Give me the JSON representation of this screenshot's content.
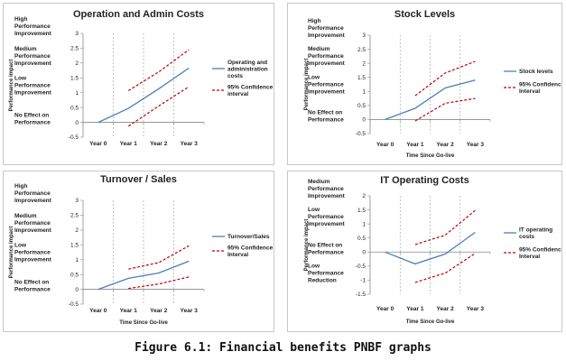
{
  "caption": "Figure 6.1: Financial benefits PNBF graphs",
  "chart_data": [
    {
      "type": "line",
      "title": "Operation and Admin Costs",
      "xlabel": "",
      "ylabel": "Performance impact",
      "categories": [
        "Year 0",
        "Year 1",
        "Year 2",
        "Year 3"
      ],
      "yticks": [
        "-0.5",
        "0",
        "0.5",
        "1",
        "1.5",
        "2",
        "2.5",
        "3"
      ],
      "ylim": [
        -0.5,
        3
      ],
      "y_categories": [
        {
          "label": [
            "High",
            "Performance",
            "Improvement"
          ],
          "y": 3
        },
        {
          "label": [
            "Medium",
            "Performance",
            "Improvement"
          ],
          "y": 2
        },
        {
          "label": [
            "Low",
            "Performance",
            "Improvement"
          ],
          "y": 1
        },
        {
          "label": [
            "No Effect on",
            "Performance"
          ],
          "y": 0
        }
      ],
      "series": [
        {
          "name": "Operating and administration costs",
          "legend_lines": [
            "Operating and",
            "administration",
            "costs"
          ],
          "style": "solid",
          "color": "#4a7ebb",
          "values": [
            0,
            0.47,
            1.13,
            1.83
          ]
        },
        {
          "name": "95% Confidence Interval",
          "legend_lines": [
            "95% Confidence",
            "interval"
          ],
          "style": "dashed",
          "color": "#c00000",
          "values": [
            null,
            1.07,
            1.7,
            2.45
          ]
        },
        {
          "name": "95% Confidence Interval (lower)",
          "legend": false,
          "style": "dashed",
          "color": "#c00000",
          "values": [
            null,
            -0.13,
            0.55,
            1.2
          ]
        }
      ]
    },
    {
      "type": "line",
      "title": "Stock Levels",
      "xlabel": "Time Since Go-live",
      "ylabel": "Performance impact",
      "categories": [
        "Year 0",
        "Year 1",
        "Year 2",
        "Year 3"
      ],
      "yticks": [
        "-0.5",
        "0",
        "0.5",
        "1",
        "1.5",
        "2",
        "2.5",
        "3"
      ],
      "ylim": [
        -0.5,
        3
      ],
      "y_categories": [
        {
          "label": [
            "High",
            "Performance",
            "Improvement"
          ],
          "y": 3
        },
        {
          "label": [
            "Medium",
            "Performance",
            "Improvement"
          ],
          "y": 2
        },
        {
          "label": [
            "Low",
            "Performance",
            "Improvement"
          ],
          "y": 1
        },
        {
          "label": [
            "No Effect on",
            "Performance"
          ],
          "y": 0
        }
      ],
      "series": [
        {
          "name": "Stock levels",
          "legend_lines": [
            "Stock levels"
          ],
          "style": "solid",
          "color": "#4a7ebb",
          "values": [
            0,
            0.4,
            1.12,
            1.4
          ]
        },
        {
          "name": "95% Confidence Interval",
          "legend_lines": [
            "95% Confidence",
            "Interval"
          ],
          "style": "dashed",
          "color": "#c00000",
          "values": [
            null,
            0.85,
            1.65,
            2.07
          ]
        },
        {
          "name": "95% Confidence Interval (lower)",
          "legend": false,
          "style": "dashed",
          "color": "#c00000",
          "values": [
            null,
            -0.05,
            0.58,
            0.75
          ]
        }
      ]
    },
    {
      "type": "line",
      "title": "Turnover / Sales",
      "xlabel": "Time Since Go-live",
      "ylabel": "Performance impact",
      "categories": [
        "Year 0",
        "Year 1",
        "Year 2",
        "Year 3"
      ],
      "yticks": [
        "-0.5",
        "0",
        "0.5",
        "1",
        "1.5",
        "2",
        "2.5",
        "3"
      ],
      "ylim": [
        -0.5,
        3
      ],
      "y_categories": [
        {
          "label": [
            "High",
            "Performance",
            "Improvement"
          ],
          "y": 3
        },
        {
          "label": [
            "Medium",
            "Performance",
            "Improvement"
          ],
          "y": 2
        },
        {
          "label": [
            "Low",
            "Performance",
            "Improvement"
          ],
          "y": 1
        },
        {
          "label": [
            "No Effect on",
            "Performance"
          ],
          "y": 0
        }
      ],
      "series": [
        {
          "name": "Turnover/Sales",
          "legend_lines": [
            "Turnover/Sales"
          ],
          "style": "solid",
          "color": "#4a7ebb",
          "values": [
            0,
            0.37,
            0.55,
            0.95
          ]
        },
        {
          "name": "95% Confidence Interval",
          "legend_lines": [
            "95% Confidence",
            "Interval"
          ],
          "style": "dashed",
          "color": "#c00000",
          "values": [
            null,
            0.68,
            0.9,
            1.47
          ]
        },
        {
          "name": "95% Confidence Interval (lower)",
          "legend": false,
          "style": "dashed",
          "color": "#c00000",
          "values": [
            null,
            0.03,
            0.18,
            0.42
          ]
        }
      ]
    },
    {
      "type": "line",
      "title": "IT Operating Costs",
      "xlabel": "Time Since Go-live",
      "ylabel": "Performance impact",
      "categories": [
        "Year 0",
        "Year 1",
        "Year 2",
        "Year 3"
      ],
      "yticks": [
        "-1.5",
        "-1",
        "-0.5",
        "0",
        "0.5",
        "1",
        "1.5",
        "2"
      ],
      "ylim": [
        -1.5,
        2
      ],
      "y_categories": [
        {
          "label": [
            "Medium",
            "Performance",
            "Improvement"
          ],
          "y": 2
        },
        {
          "label": [
            "Low",
            "Performance",
            "Improvement"
          ],
          "y": 1
        },
        {
          "label": [
            "No Effect on",
            "Performance"
          ],
          "y": 0
        },
        {
          "label": [
            "Low",
            "Performance",
            "Reduction"
          ],
          "y": -1
        }
      ],
      "series": [
        {
          "name": "IT operating costs",
          "legend_lines": [
            "IT operating",
            "costs"
          ],
          "style": "solid",
          "color": "#4a7ebb",
          "values": [
            0,
            -0.42,
            -0.07,
            0.7
          ]
        },
        {
          "name": "95% Confidence Interval",
          "legend_lines": [
            "95% Confidence",
            "Interval"
          ],
          "style": "dashed",
          "color": "#c00000",
          "values": [
            null,
            0.27,
            0.6,
            1.48
          ]
        },
        {
          "name": "95% Confidence Interval (lower)",
          "legend": false,
          "style": "dashed",
          "color": "#c00000",
          "values": [
            null,
            -1.08,
            -0.75,
            -0.05
          ]
        }
      ]
    }
  ]
}
